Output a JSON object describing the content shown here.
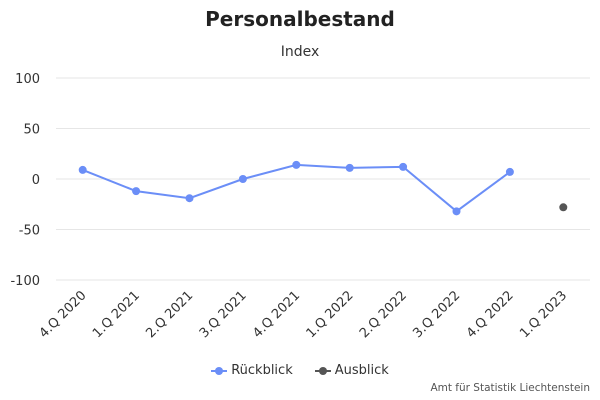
{
  "chart_data": {
    "type": "line",
    "title": "Personalbestand",
    "subtitle": "Index",
    "categories": [
      "4.Q 2020",
      "1.Q 2021",
      "2.Q 2021",
      "3.Q 2021",
      "4.Q 2021",
      "1.Q 2022",
      "2.Q 2022",
      "3.Q 2022",
      "4.Q 2022",
      "1.Q 2023"
    ],
    "ylim": [
      -100,
      100
    ],
    "yticks": [
      "100",
      "50",
      "0",
      "-50",
      "-100"
    ],
    "grid": true,
    "legend_position": "bottom-center",
    "series": [
      {
        "name": "Rückblick",
        "color": "#6b8ef7",
        "values": [
          9,
          -12,
          -19,
          0,
          14,
          11,
          12,
          -32,
          7,
          null
        ]
      },
      {
        "name": "Ausblick",
        "color": "#555555",
        "values": [
          null,
          null,
          null,
          null,
          null,
          null,
          null,
          null,
          null,
          -28
        ]
      }
    ]
  },
  "credits": "Amt für Statistik Liechtenstein"
}
